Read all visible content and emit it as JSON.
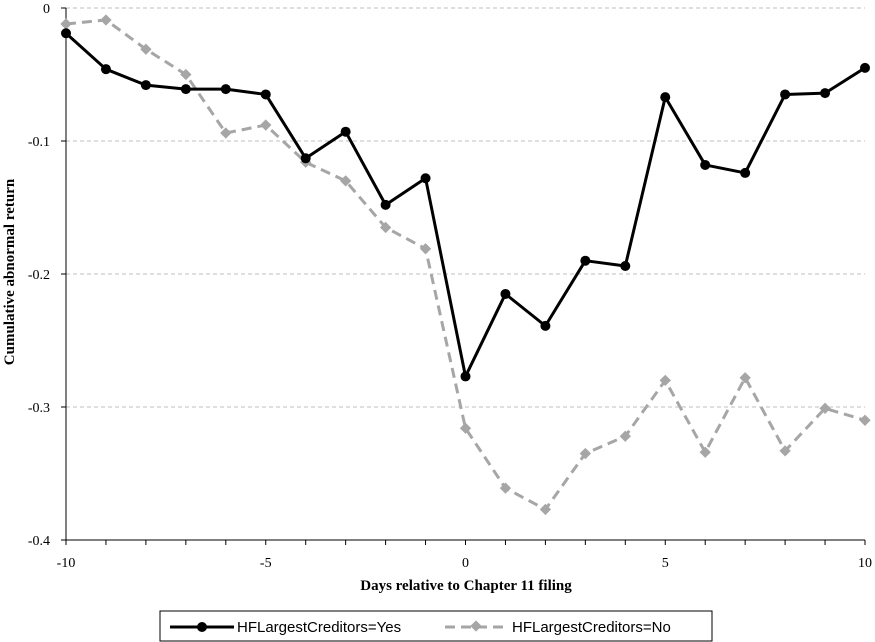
{
  "chart_data": {
    "type": "line",
    "xlabel": "Days relative to Chapter 11 filing",
    "ylabel": "Cumulative abnormal return",
    "xlim": [
      -10,
      10
    ],
    "ylim": [
      -0.4,
      0
    ],
    "x_ticks": [
      -10,
      -5,
      0,
      5,
      10
    ],
    "y_ticks": [
      0,
      -0.1,
      -0.2,
      -0.3,
      -0.4
    ],
    "x_tick_labels": [
      "-10",
      "-5",
      "0",
      "5",
      "10"
    ],
    "y_tick_labels": [
      "0",
      "-0.1",
      "-0.2",
      "-0.3",
      "-0.4"
    ],
    "grid": "horizontal dashed",
    "legend_position": "bottom",
    "x": [
      -10,
      -9,
      -8,
      -7,
      -6,
      -5,
      -4,
      -3,
      -2,
      -1,
      0,
      1,
      2,
      3,
      4,
      5,
      6,
      7,
      8,
      9,
      10
    ],
    "series": [
      {
        "name": "HFLargestCreditors=Yes",
        "color": "#000000",
        "line_style": "solid",
        "marker": "circle",
        "values": [
          -0.019,
          -0.046,
          -0.058,
          -0.061,
          -0.061,
          -0.065,
          -0.113,
          -0.093,
          -0.148,
          -0.128,
          -0.277,
          -0.215,
          -0.239,
          -0.19,
          -0.194,
          -0.067,
          -0.118,
          -0.124,
          -0.065,
          -0.064,
          -0.045
        ]
      },
      {
        "name": "HFLargestCreditors=No",
        "color": "#a6a6a6",
        "line_style": "dashed",
        "marker": "diamond",
        "values": [
          -0.012,
          -0.009,
          -0.031,
          -0.05,
          -0.094,
          -0.088,
          -0.116,
          -0.13,
          -0.165,
          -0.181,
          -0.316,
          -0.361,
          -0.377,
          -0.335,
          -0.322,
          -0.28,
          -0.334,
          -0.278,
          -0.333,
          -0.301,
          -0.31
        ]
      }
    ]
  }
}
